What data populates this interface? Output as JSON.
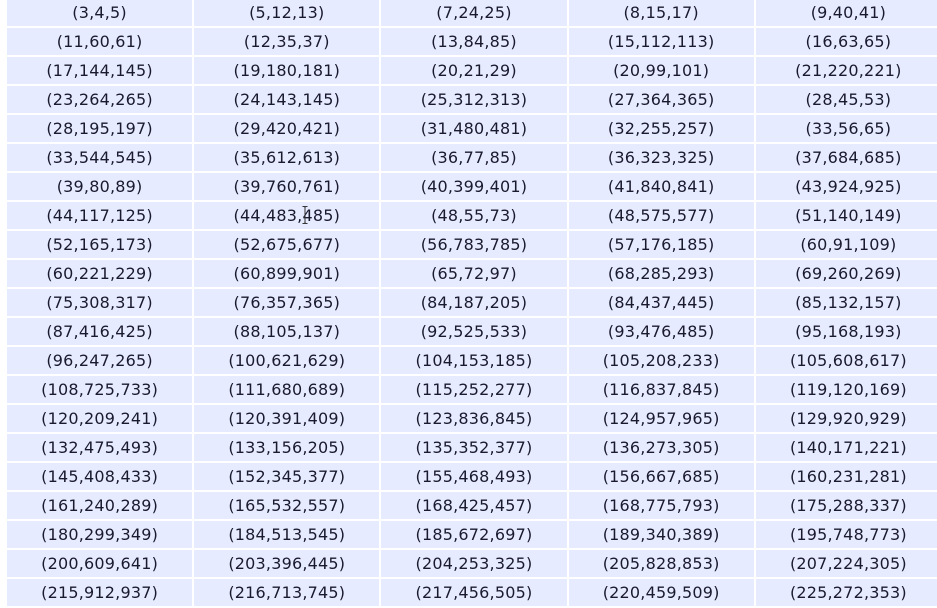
{
  "table": {
    "rows": [
      [
        "(3,4,5)",
        "(5,12,13)",
        "(7,24,25)",
        "(8,15,17)",
        "(9,40,41)"
      ],
      [
        "(11,60,61)",
        "(12,35,37)",
        "(13,84,85)",
        "(15,112,113)",
        "(16,63,65)"
      ],
      [
        "(17,144,145)",
        "(19,180,181)",
        "(20,21,29)",
        "(20,99,101)",
        "(21,220,221)"
      ],
      [
        "(23,264,265)",
        "(24,143,145)",
        "(25,312,313)",
        "(27,364,365)",
        "(28,45,53)"
      ],
      [
        "(28,195,197)",
        "(29,420,421)",
        "(31,480,481)",
        "(32,255,257)",
        "(33,56,65)"
      ],
      [
        "(33,544,545)",
        "(35,612,613)",
        "(36,77,85)",
        "(36,323,325)",
        "(37,684,685)"
      ],
      [
        "(39,80,89)",
        "(39,760,761)",
        "(40,399,401)",
        "(41,840,841)",
        "(43,924,925)"
      ],
      [
        "(44,117,125)",
        "(44,483,485)",
        "(48,55,73)",
        "(48,575,577)",
        "(51,140,149)"
      ],
      [
        "(52,165,173)",
        "(52,675,677)",
        "(56,783,785)",
        "(57,176,185)",
        "(60,91,109)"
      ],
      [
        "(60,221,229)",
        "(60,899,901)",
        "(65,72,97)",
        "(68,285,293)",
        "(69,260,269)"
      ],
      [
        "(75,308,317)",
        "(76,357,365)",
        "(84,187,205)",
        "(84,437,445)",
        "(85,132,157)"
      ],
      [
        "(87,416,425)",
        "(88,105,137)",
        "(92,525,533)",
        "(93,476,485)",
        "(95,168,193)"
      ],
      [
        "(96,247,265)",
        "(100,621,629)",
        "(104,153,185)",
        "(105,208,233)",
        "(105,608,617)"
      ],
      [
        "(108,725,733)",
        "(111,680,689)",
        "(115,252,277)",
        "(116,837,845)",
        "(119,120,169)"
      ],
      [
        "(120,209,241)",
        "(120,391,409)",
        "(123,836,845)",
        "(124,957,965)",
        "(129,920,929)"
      ],
      [
        "(132,475,493)",
        "(133,156,205)",
        "(135,352,377)",
        "(136,273,305)",
        "(140,171,221)"
      ],
      [
        "(145,408,433)",
        "(152,345,377)",
        "(155,468,493)",
        "(156,667,685)",
        "(160,231,281)"
      ],
      [
        "(161,240,289)",
        "(165,532,557)",
        "(168,425,457)",
        "(168,775,793)",
        "(175,288,337)"
      ],
      [
        "(180,299,349)",
        "(184,513,545)",
        "(185,672,697)",
        "(189,340,389)",
        "(195,748,773)"
      ],
      [
        "(200,609,641)",
        "(203,396,445)",
        "(204,253,325)",
        "(205,828,853)",
        "(207,224,305)"
      ],
      [
        "(215,912,937)",
        "(216,713,745)",
        "(217,456,505)",
        "(220,459,509)",
        "(225,272,353)"
      ]
    ]
  },
  "colors": {
    "cell_background": "#e6ebff",
    "text": "#1a1a2e"
  },
  "cursor": {
    "icon": "text-cursor-icon"
  }
}
